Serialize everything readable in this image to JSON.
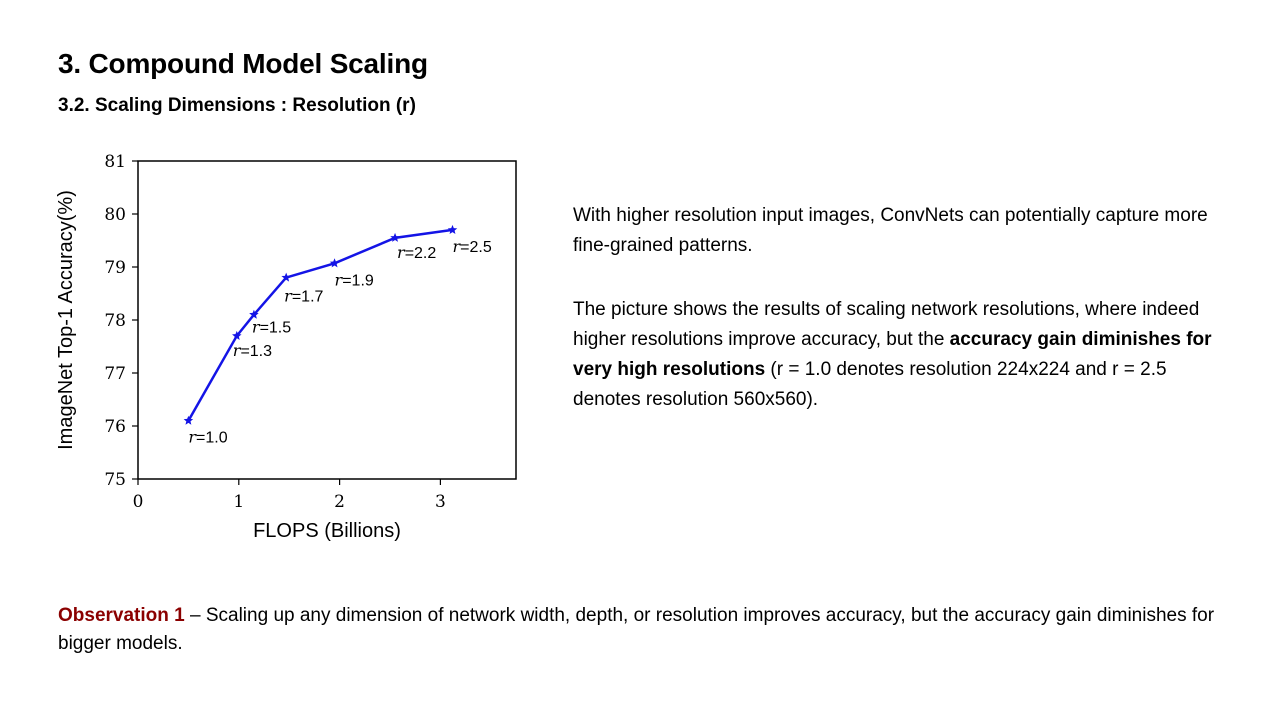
{
  "slide": {
    "title": "3. Compound Model Scaling",
    "subtitle": "3.2. Scaling Dimensions : Resolution (r)"
  },
  "description": {
    "paragraph1": "With higher resolution input images, ConvNets can potentially capture more fine-grained patterns.",
    "paragraph2_before": "The picture shows the results of scaling network resolutions, where indeed higher resolutions improve accuracy, but the ",
    "paragraph2_bold": "accuracy gain diminishes for very high resolutions",
    "paragraph2_after": " (r = 1.0 denotes resolution 224x224 and r = 2.5 denotes resolution 560x560)."
  },
  "observation": {
    "label": "Observation 1",
    "text": " – Scaling up any dimension of network width, depth, or resolution improves accuracy, but the accuracy gain diminishes for bigger models."
  },
  "chart_data": {
    "type": "line",
    "title": "",
    "xlabel": "FLOPS (Billions)",
    "ylabel": "ImageNet Top-1 Accuracy(%)",
    "xlim": [
      0,
      3.75
    ],
    "ylim": [
      75,
      81
    ],
    "xticks": [
      0,
      1,
      2,
      3
    ],
    "yticks": [
      75,
      76,
      77,
      78,
      79,
      80,
      81
    ],
    "grid": false,
    "line_color": "#1414e6",
    "series": [
      {
        "x": [
          0.5,
          0.98,
          1.15,
          1.47,
          1.95,
          2.55,
          3.12
        ],
        "y": [
          76.1,
          77.7,
          78.1,
          78.8,
          79.07,
          79.55,
          79.7
        ],
        "labels": [
          "r=1.0",
          "r=1.3",
          "r=1.5",
          "r=1.7",
          "r=1.9",
          "r=2.2",
          "r=2.5"
        ]
      }
    ]
  }
}
